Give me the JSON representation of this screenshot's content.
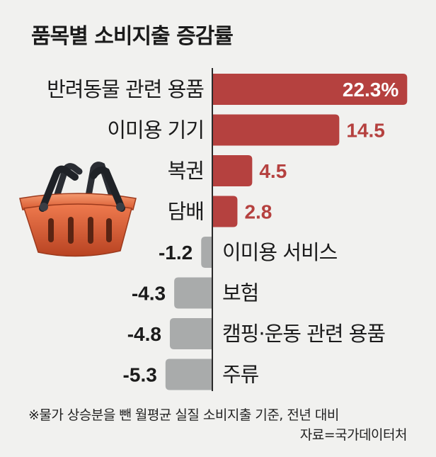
{
  "title": "품목별 소비지출 증감률",
  "chart_data": {
    "type": "bar",
    "orientation": "horizontal",
    "title": "품목별 소비지출 증감률",
    "unit": "%",
    "categories": [
      "반려동물 관련 용품",
      "이미용 기기",
      "복권",
      "담배",
      "이미용 서비스",
      "보험",
      "캠핑·운동 관련 용품",
      "주류"
    ],
    "values": [
      22.3,
      14.5,
      4.5,
      2.8,
      -1.2,
      -4.3,
      -4.8,
      -5.3
    ],
    "value_labels": [
      "22.3%",
      "14.5",
      "4.5",
      "2.8",
      "-1.2",
      "-4.3",
      "-4.8",
      "-5.3"
    ],
    "positive_color": "#b5413f",
    "negative_color": "#a9abab"
  },
  "footnote": "※물가 상승분을 뺀 월평균 실질 소비지출 기준, 전년 대비",
  "source": "자료=국가데이터처",
  "icon": "shopping-basket-icon"
}
